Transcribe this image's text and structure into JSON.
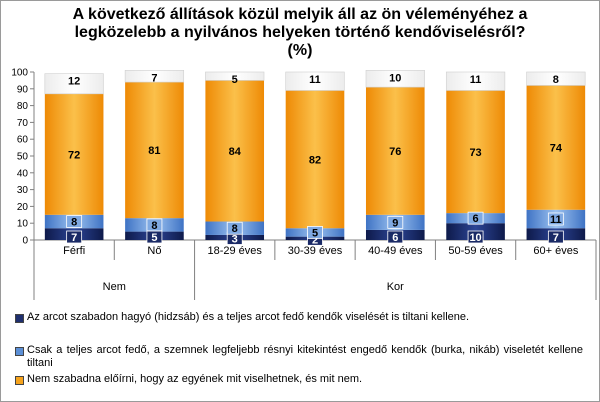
{
  "title_lines": [
    "A következő állítások közül melyik áll az ön véleményéhez a",
    "legközelebb a nyilvános helyeken történő kendőviselésről?",
    "(%)"
  ],
  "chart_data": {
    "type": "bar",
    "stacked": true,
    "categories": [
      "Férfi",
      "Nő",
      "18-29 éves",
      "30-39 éves",
      "40-49 éves",
      "50-59 éves",
      "60+ éves"
    ],
    "groups": [
      {
        "label": "Nem",
        "categories": [
          "Férfi",
          "Nő"
        ]
      },
      {
        "label": "Kor",
        "categories": [
          "18-29 éves",
          "30-39 éves",
          "40-49 éves",
          "50-59 éves",
          "60+ éves"
        ]
      }
    ],
    "series": [
      {
        "name": "Az arcot szabadon hagyó (hidzsáb) és a teljes arcot fedő kendők viselését is tiltani kellene.",
        "color": "#1f2f6e",
        "values": [
          7,
          5,
          3,
          2,
          6,
          10,
          7
        ]
      },
      {
        "name": "Csak a teljes arcot fedő, a szemnek legfeljebb résnyi kitekintést engedő kendők (burka, nikáb) viseletét kellene tiltani",
        "color": "#5b8fd6",
        "values": [
          8,
          8,
          8,
          5,
          9,
          6,
          11
        ]
      },
      {
        "name": "Nem szabadna előírni, hogy az egyének mit viselhetnek, és mit nem.",
        "color": "#f6a31c",
        "values": [
          72,
          81,
          84,
          82,
          76,
          73,
          74
        ]
      },
      {
        "name": "",
        "color": "#ffffff",
        "values": [
          12,
          7,
          5,
          11,
          10,
          11,
          8
        ]
      }
    ],
    "ylim": [
      0,
      100
    ],
    "yticks": [
      0,
      10,
      20,
      30,
      40,
      50,
      60,
      70,
      80,
      90,
      100
    ],
    "legend_position": "bottom",
    "grid": false
  }
}
